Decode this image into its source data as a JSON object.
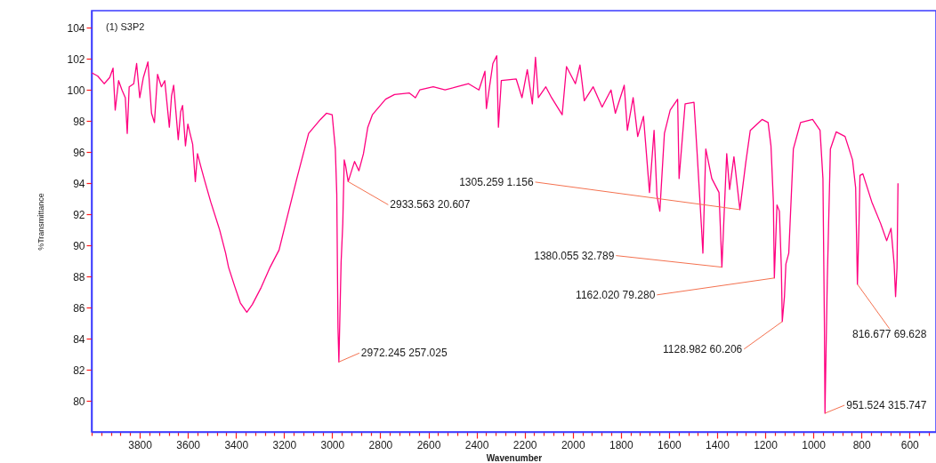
{
  "chart_data": {
    "type": "line",
    "title": "(1) S3P2",
    "xlabel": "Wavenumber",
    "ylabel": "%Transmittance",
    "x": [
      3999,
      3975,
      3948,
      3925,
      3911,
      3902,
      3888,
      3874,
      3860,
      3852,
      3844,
      3825,
      3813,
      3800,
      3785,
      3766,
      3751,
      3739,
      3726,
      3710,
      3696,
      3677,
      3668,
      3659,
      3640,
      3630,
      3622,
      3610,
      3600,
      3591,
      3580,
      3569,
      3560,
      3545,
      3529,
      3505,
      3468,
      3443,
      3431,
      3406,
      3382,
      3355,
      3332,
      3295,
      3258,
      3221,
      3197,
      3147,
      3098,
      3049,
      3024,
      3000,
      2987,
      2981,
      2976,
      2972.245,
      2963,
      2956,
      2950,
      2944,
      2933.563,
      2907,
      2889,
      2870,
      2852,
      2833,
      2778,
      2741,
      2679,
      2654,
      2636,
      2580,
      2531,
      2482,
      2433,
      2390,
      2365,
      2359,
      2332,
      2316,
      2309,
      2297,
      2235,
      2211,
      2189,
      2168,
      2155,
      2143,
      2112,
      2088,
      2044,
      2026,
      1989,
      1970,
      1952,
      1915,
      1878,
      1841,
      1823,
      1786,
      1773,
      1749,
      1730,
      1706,
      1681,
      1662,
      1650,
      1638,
      1619,
      1595,
      1564,
      1558,
      1533,
      1496,
      1484,
      1465,
      1459,
      1447,
      1422,
      1392,
      1380.055,
      1360,
      1348,
      1330,
      1305.259,
      1281,
      1262,
      1213,
      1188,
      1176,
      1166,
      1162.02,
      1151,
      1141,
      1133,
      1128.982,
      1120,
      1114,
      1102,
      1083,
      1053,
      1003,
      972,
      960,
      954,
      951.524,
      942,
      929,
      905,
      868,
      837,
      824,
      818,
      816.677,
      810,
      806,
      794,
      757,
      720,
      695,
      677,
      664,
      658,
      652,
      648
    ],
    "series": [
      {
        "color": "#ff0080",
        "values": [
          101.1,
          100.9,
          100.4,
          100.8,
          101.4,
          98.7,
          100.6,
          100.0,
          99.5,
          97.2,
          100.2,
          100.4,
          101.7,
          99.5,
          100.8,
          101.8,
          98.5,
          97.9,
          101.0,
          100.2,
          100.6,
          97.6,
          99.6,
          100.3,
          96.8,
          98.6,
          99.0,
          96.4,
          97.8,
          97.2,
          96.5,
          94.1,
          95.9,
          95.0,
          94.1,
          92.8,
          91.0,
          89.5,
          88.6,
          87.4,
          86.3,
          85.7,
          86.2,
          87.3,
          88.6,
          89.7,
          91.2,
          94.3,
          97.2,
          98.1,
          98.5,
          98.4,
          96.2,
          93.3,
          84.7,
          82.5,
          88.9,
          91.4,
          95.5,
          95.1,
          94.1,
          95.4,
          94.8,
          95.9,
          97.6,
          98.4,
          99.4,
          99.7,
          99.8,
          99.5,
          100.0,
          100.2,
          100.0,
          100.2,
          100.4,
          100.0,
          101.2,
          98.8,
          101.7,
          102.2,
          97.6,
          100.6,
          100.7,
          99.5,
          101.3,
          99.1,
          102.1,
          99.5,
          100.2,
          99.5,
          98.4,
          101.5,
          100.4,
          101.6,
          99.3,
          100.2,
          98.9,
          100.0,
          98.5,
          100.3,
          97.4,
          99.5,
          97.0,
          98.3,
          93.4,
          97.4,
          93.2,
          92.2,
          97.2,
          98.7,
          99.4,
          94.3,
          99.1,
          99.2,
          96.2,
          91.2,
          89.5,
          96.2,
          94.3,
          93.4,
          88.6,
          95.9,
          93.6,
          95.7,
          92.3,
          95.3,
          97.4,
          98.1,
          97.9,
          96.4,
          92.8,
          87.9,
          92.6,
          92.2,
          88.6,
          85.1,
          86.7,
          88.8,
          89.5,
          96.2,
          97.9,
          98.1,
          97.4,
          94.3,
          85.1,
          79.2,
          87.7,
          96.2,
          97.3,
          97.0,
          95.5,
          93.7,
          88.6,
          87.5,
          91.4,
          94.5,
          94.6,
          92.8,
          91.4,
          90.3,
          91.1,
          88.8,
          86.7,
          88.6,
          94.0
        ]
      }
    ],
    "xlim": [
      4000,
      490
    ],
    "xticks": [
      {
        "value": 4000,
        "label": null
      },
      {
        "value": 3960,
        "label": null
      },
      {
        "value": 3920,
        "label": null
      },
      {
        "value": 3880,
        "label": null
      },
      {
        "value": 3840,
        "label": null
      },
      3800,
      {
        "value": 3760,
        "label": null
      },
      {
        "value": 3720,
        "label": null
      },
      {
        "value": 3680,
        "label": null
      },
      {
        "value": 3640,
        "label": null
      },
      3600,
      {
        "value": 3560,
        "label": null
      },
      {
        "value": 3520,
        "label": null
      },
      {
        "value": 3480,
        "label": null
      },
      {
        "value": 3440,
        "label": null
      },
      3400,
      {
        "value": 3360,
        "label": null
      },
      {
        "value": 3320,
        "label": null
      },
      {
        "value": 3280,
        "label": null
      },
      {
        "value": 3240,
        "label": null
      },
      3200,
      {
        "value": 3160,
        "label": null
      },
      {
        "value": 3120,
        "label": null
      },
      {
        "value": 3080,
        "label": null
      },
      {
        "value": 3040,
        "label": null
      },
      3000,
      {
        "value": 2960,
        "label": null
      },
      {
        "value": 2920,
        "label": null
      },
      {
        "value": 2880,
        "label": null
      },
      {
        "value": 2840,
        "label": null
      },
      2800,
      {
        "value": 2760,
        "label": null
      },
      {
        "value": 2720,
        "label": null
      },
      {
        "value": 2680,
        "label": null
      },
      {
        "value": 2640,
        "label": null
      },
      2600,
      {
        "value": 2560,
        "label": null
      },
      {
        "value": 2520,
        "label": null
      },
      {
        "value": 2480,
        "label": null
      },
      {
        "value": 2440,
        "label": null
      },
      2400,
      {
        "value": 2360,
        "label": null
      },
      {
        "value": 2320,
        "label": null
      },
      {
        "value": 2280,
        "label": null
      },
      {
        "value": 2240,
        "label": null
      },
      2200,
      {
        "value": 2160,
        "label": null
      },
      {
        "value": 2120,
        "label": null
      },
      {
        "value": 2080,
        "label": null
      },
      {
        "value": 2040,
        "label": null
      },
      2000,
      {
        "value": 1960,
        "label": null
      },
      {
        "value": 1920,
        "label": null
      },
      {
        "value": 1880,
        "label": null
      },
      {
        "value": 1840,
        "label": null
      },
      1800,
      {
        "value": 1760,
        "label": null
      },
      {
        "value": 1720,
        "label": null
      },
      {
        "value": 1680,
        "label": null
      },
      {
        "value": 1640,
        "label": null
      },
      1600,
      {
        "value": 1560,
        "label": null
      },
      {
        "value": 1520,
        "label": null
      },
      {
        "value": 1480,
        "label": null
      },
      {
        "value": 1440,
        "label": null
      },
      1400,
      {
        "value": 1360,
        "label": null
      },
      {
        "value": 1320,
        "label": null
      },
      {
        "value": 1280,
        "label": null
      },
      {
        "value": 1240,
        "label": null
      },
      1200,
      {
        "value": 1160,
        "label": null
      },
      {
        "value": 1120,
        "label": null
      },
      {
        "value": 1080,
        "label": null
      },
      {
        "value": 1040,
        "label": null
      },
      1000,
      {
        "value": 960,
        "label": null
      },
      {
        "value": 920,
        "label": null
      },
      {
        "value": 880,
        "label": null
      },
      {
        "value": 840,
        "label": null
      },
      800,
      {
        "value": 760,
        "label": null
      },
      {
        "value": 720,
        "label": null
      },
      {
        "value": 680,
        "label": null
      },
      {
        "value": 640,
        "label": null
      },
      600,
      {
        "value": 560,
        "label": null
      },
      {
        "value": 520,
        "label": null
      }
    ],
    "ylim": [
      78,
      105.1
    ],
    "yticks": [
      80,
      82,
      84,
      86,
      88,
      90,
      92,
      94,
      96,
      98,
      100,
      102,
      104
    ],
    "annotations": [
      {
        "text": "2933.563 20.607",
        "x": 2933.563,
        "y": 94.1
      },
      {
        "text": "2972.245 257.025",
        "x": 2972.245,
        "y": 82.5
      },
      {
        "text": "1305.259 1.156",
        "x": 1305.259,
        "y": 92.3
      },
      {
        "text": "1380.055 32.789",
        "x": 1380.055,
        "y": 88.6
      },
      {
        "text": "1162.020 79.280",
        "x": 1162.02,
        "y": 87.9
      },
      {
        "text": "1128.982 60.206",
        "x": 1128.982,
        "y": 85.1
      },
      {
        "text": "951.524 315.747",
        "x": 951.524,
        "y": 79.2
      },
      {
        "text": "816.677 69.628",
        "x": 816.677,
        "y": 87.5
      }
    ]
  }
}
